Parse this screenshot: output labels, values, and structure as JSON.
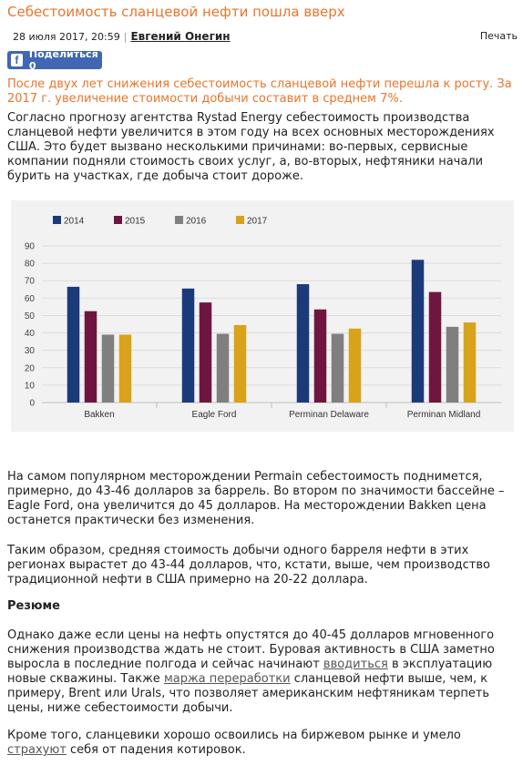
{
  "article": {
    "title": "Себестоимость сланцевой нефти пошла вверх",
    "date": "28 июля 2017, 20:59",
    "author": "Евгений Онегин",
    "print_label": "Печать",
    "share_label": "Поделиться 0",
    "lead": "После двух лет снижения себестоимость сланцевой нефти перешла к росту. За 2017 г. увеличение стоимости добычи составит в среднем 7%.",
    "p1": "Согласно прогнозу агентства Rystad Energy себестоимость производства сланцевой нефти увеличится в этом году на всех основных месторождениях США. Это будет вызвано несколькими причинами: во-первых, сервисные компании подняли стоимость своих услуг, а, во-вторых, нефтяники начали бурить на участках, где добыча стоит дороже.",
    "p2": "На самом популярном месторождении Permain себестоимость поднимется, примерно, до 43-46 долларов за баррель. Во втором по значимости бассейне – Eagle Ford, она увеличится до 45 долларов. На месторождении Bakken цена останется практически без изменения.",
    "p3": "Таким образом, средняя стоимость добычи одного барреля нефти в этих регионах вырастет до 43-44 долларов, что, кстати, выше, чем производство традиционной нефти в США примерно на 20-22 доллара.",
    "summary_heading": "Резюме",
    "p4_before_link1": "Однако даже если цены на нефть опустятся до 40-45 долларов мгновенного снижения производства ждать не стоит. Буровая активность в США заметно выросла в последние полгода и сейчас начинают ",
    "p4_link1": "вводиться",
    "p4_between": " в эксплуатацию новые скважины. Также ",
    "p4_link2": "маржа переработки",
    "p4_after": " сланцевой нефти выше, чем, к примеру, Brent или Urals, что позволяет американским нефтяникам терпеть цены, ниже себестоимости добычи.",
    "p5_before": "Кроме того, сланцевики хорошо освоились на биржевом рынке и умело ",
    "p5_link": "страхуют",
    "p5_after": " себя от падения котировок."
  },
  "icons": {
    "share": "facebook-icon"
  },
  "chart_data": {
    "type": "bar",
    "categories": [
      "Bakken",
      "Eagle Ford",
      "Perminan Delaware",
      "Perminan Midland"
    ],
    "series": [
      {
        "name": "2014",
        "values": [
          66.5,
          65.5,
          68,
          82
        ],
        "color": "#1b3a7a"
      },
      {
        "name": "2015",
        "values": [
          52.5,
          57.5,
          53.5,
          63.5
        ],
        "color": "#6e1640"
      },
      {
        "name": "2016",
        "values": [
          39,
          39.5,
          39.5,
          43.5
        ],
        "color": "#7f7f7f"
      },
      {
        "name": "2017",
        "values": [
          39,
          44.5,
          42.5,
          46
        ],
        "color": "#d9a21b"
      }
    ],
    "yticks": [
      0,
      10,
      20,
      30,
      40,
      50,
      60,
      70,
      80,
      90
    ],
    "ylim": [
      0,
      90
    ],
    "legend": "top-left",
    "grid": true,
    "background": "#f2f2f2"
  }
}
